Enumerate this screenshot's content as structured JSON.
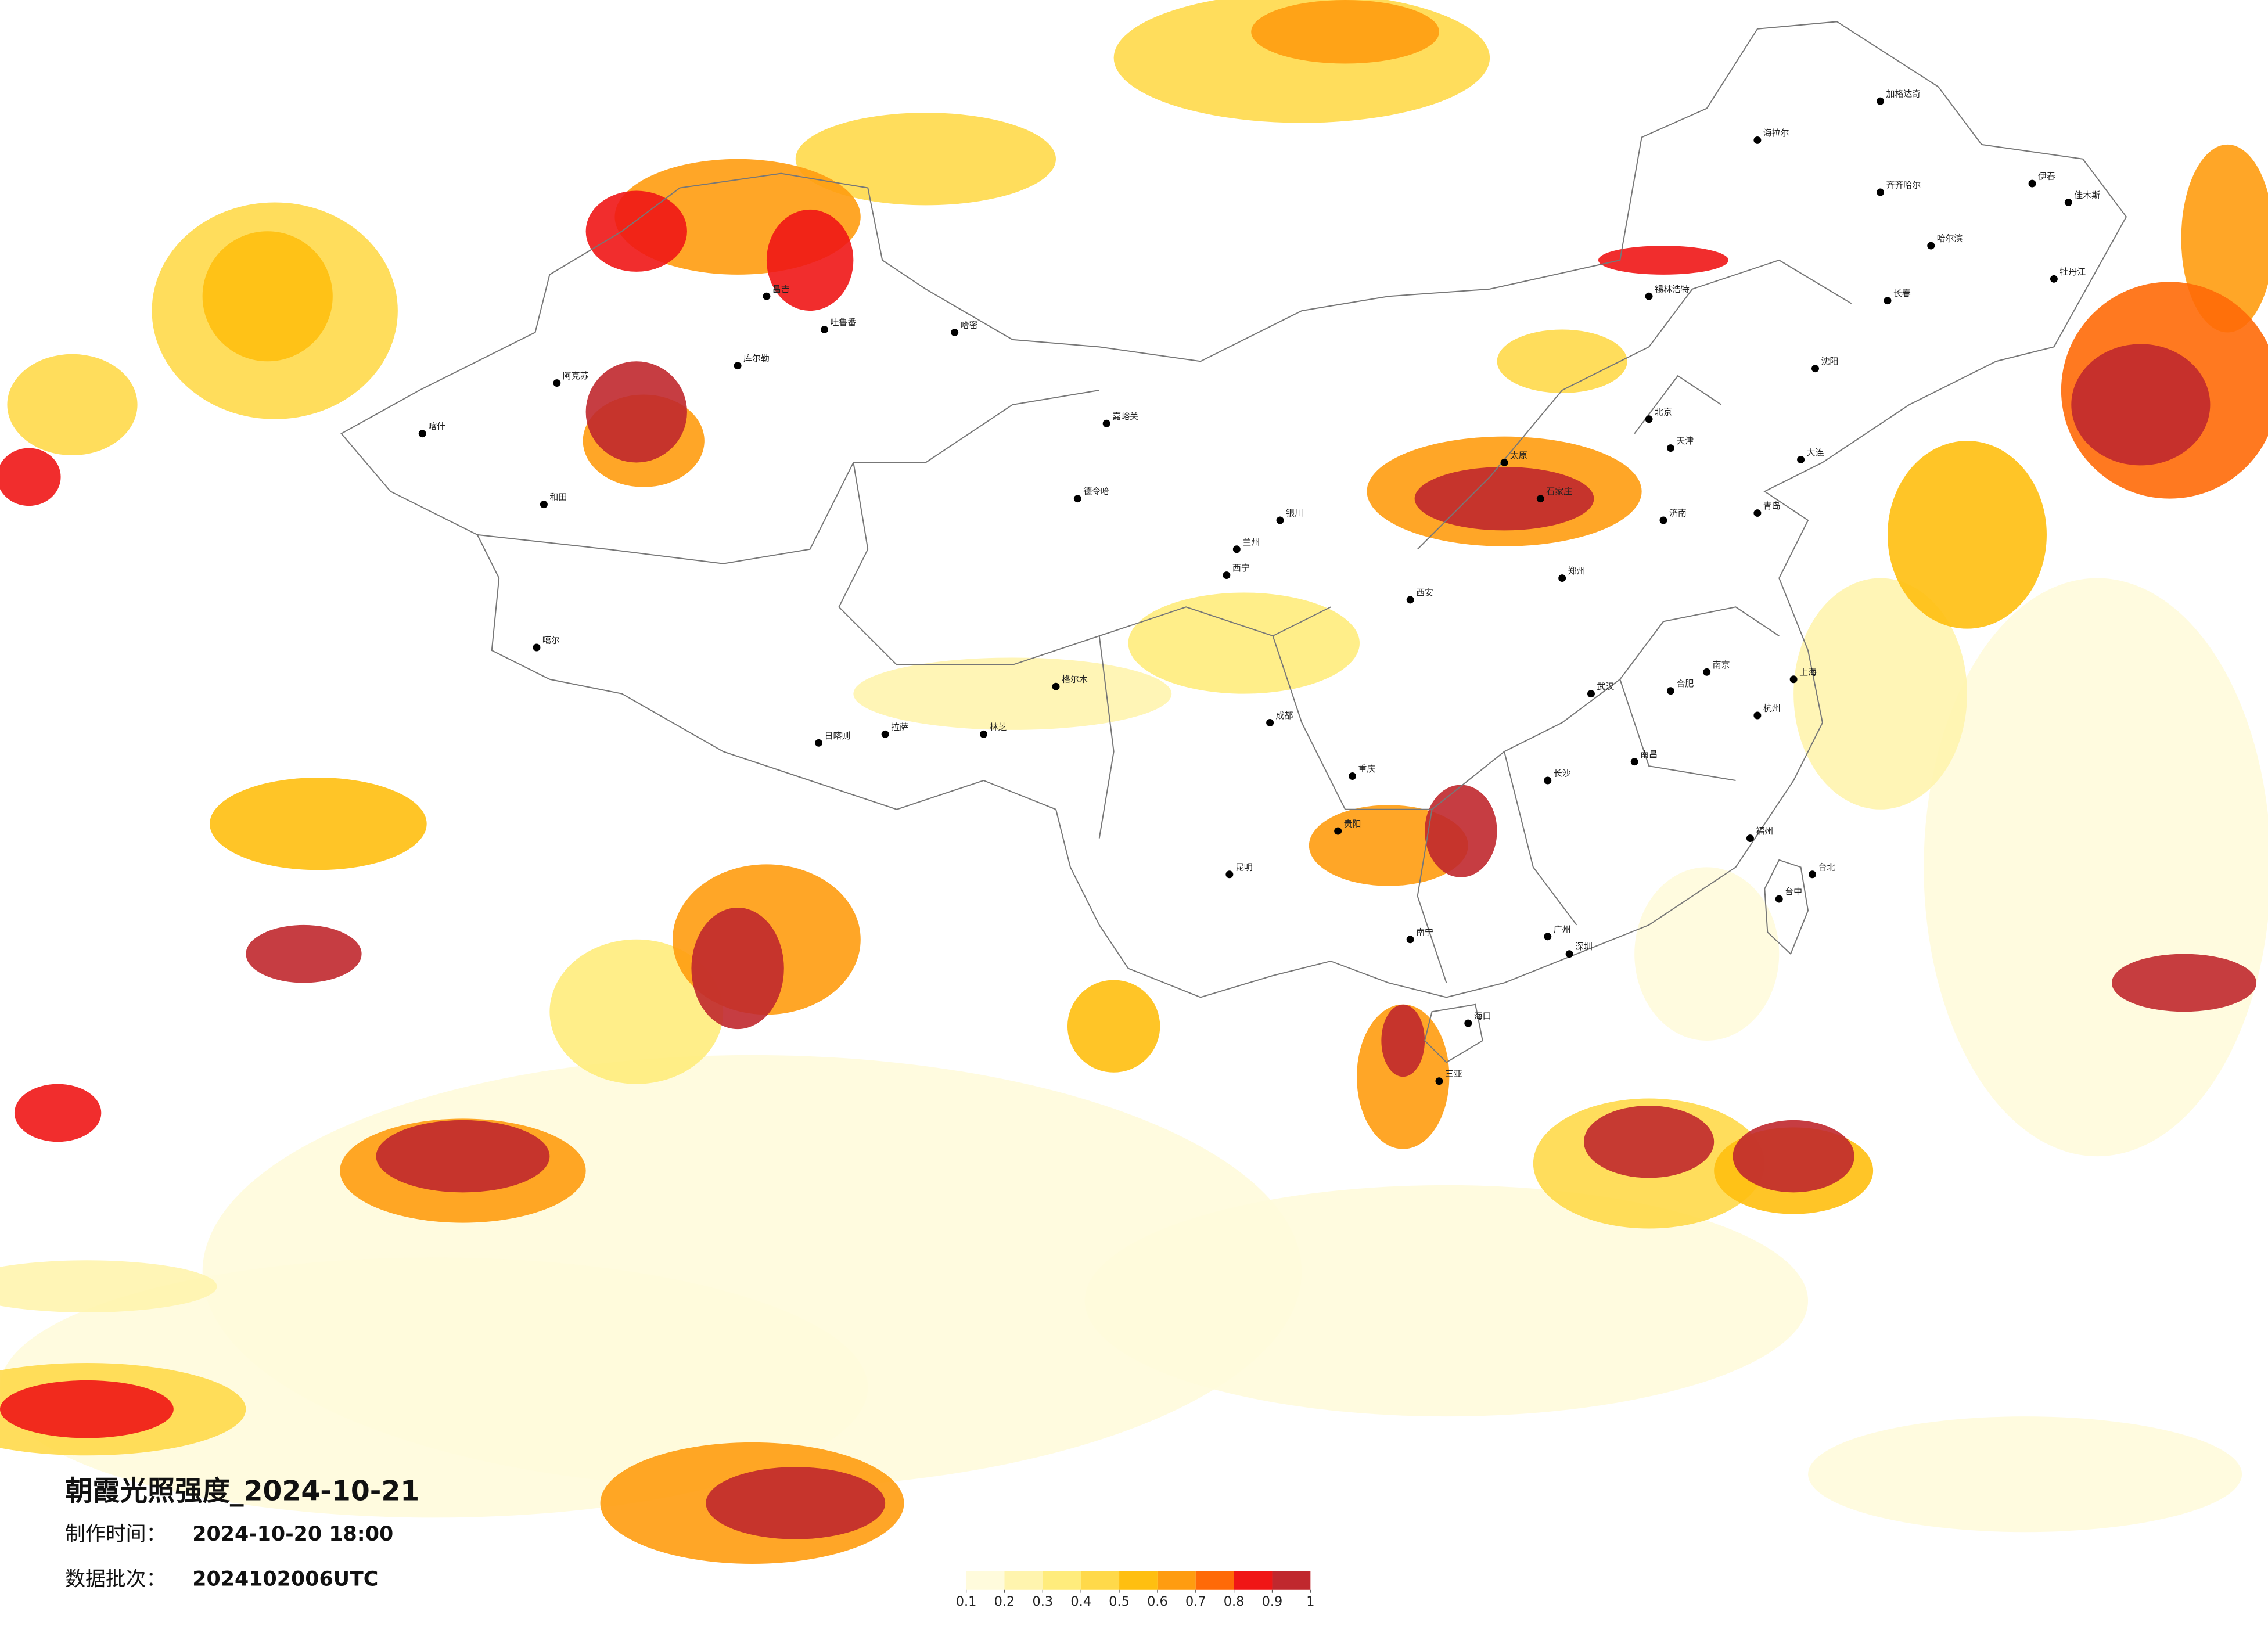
{
  "header": {
    "title": "朝霞光照强度_2024-10-21",
    "made_time_label": "制作时间：",
    "made_time": "2024-10-20 18:00",
    "batch_label": "数据批次：",
    "batch": "2024102006UTC"
  },
  "colorbar": {
    "ticks": [
      0.1,
      0.2,
      0.3,
      0.4,
      0.5,
      0.6,
      0.7,
      0.8,
      0.9,
      1
    ],
    "colors": [
      "#fffbdc",
      "#fff4ae",
      "#ffec7c",
      "#ffd94a",
      "#ffbf10",
      "#ff9c10",
      "#ff6a08",
      "#f01616",
      "#c0282e"
    ]
  },
  "cities": [
    "昌吉",
    "吐鲁番",
    "哈密",
    "库尔勒",
    "阿克苏",
    "喀什",
    "和田",
    "噶尔",
    "日喀则",
    "拉萨",
    "林芝",
    "格尔木",
    "德令哈",
    "嘉峪关",
    "西宁",
    "兰州",
    "银川",
    "成都",
    "重庆",
    "昆明",
    "贵阳",
    "南宁",
    "广州",
    "深圳",
    "海口",
    "三亚",
    "长沙",
    "武汉",
    "南昌",
    "福州",
    "台北",
    "台中",
    "杭州",
    "上海",
    "南京",
    "合肥",
    "济南",
    "郑州",
    "西安",
    "太原",
    "石家庄",
    "北京",
    "天津",
    "沈阳",
    "长春",
    "哈尔滨",
    "齐齐哈尔",
    "伊春",
    "牡丹江",
    "大连",
    "青岛",
    "锡林浩特",
    "海拉尔",
    "加格达奇",
    "佳木斯"
  ]
}
